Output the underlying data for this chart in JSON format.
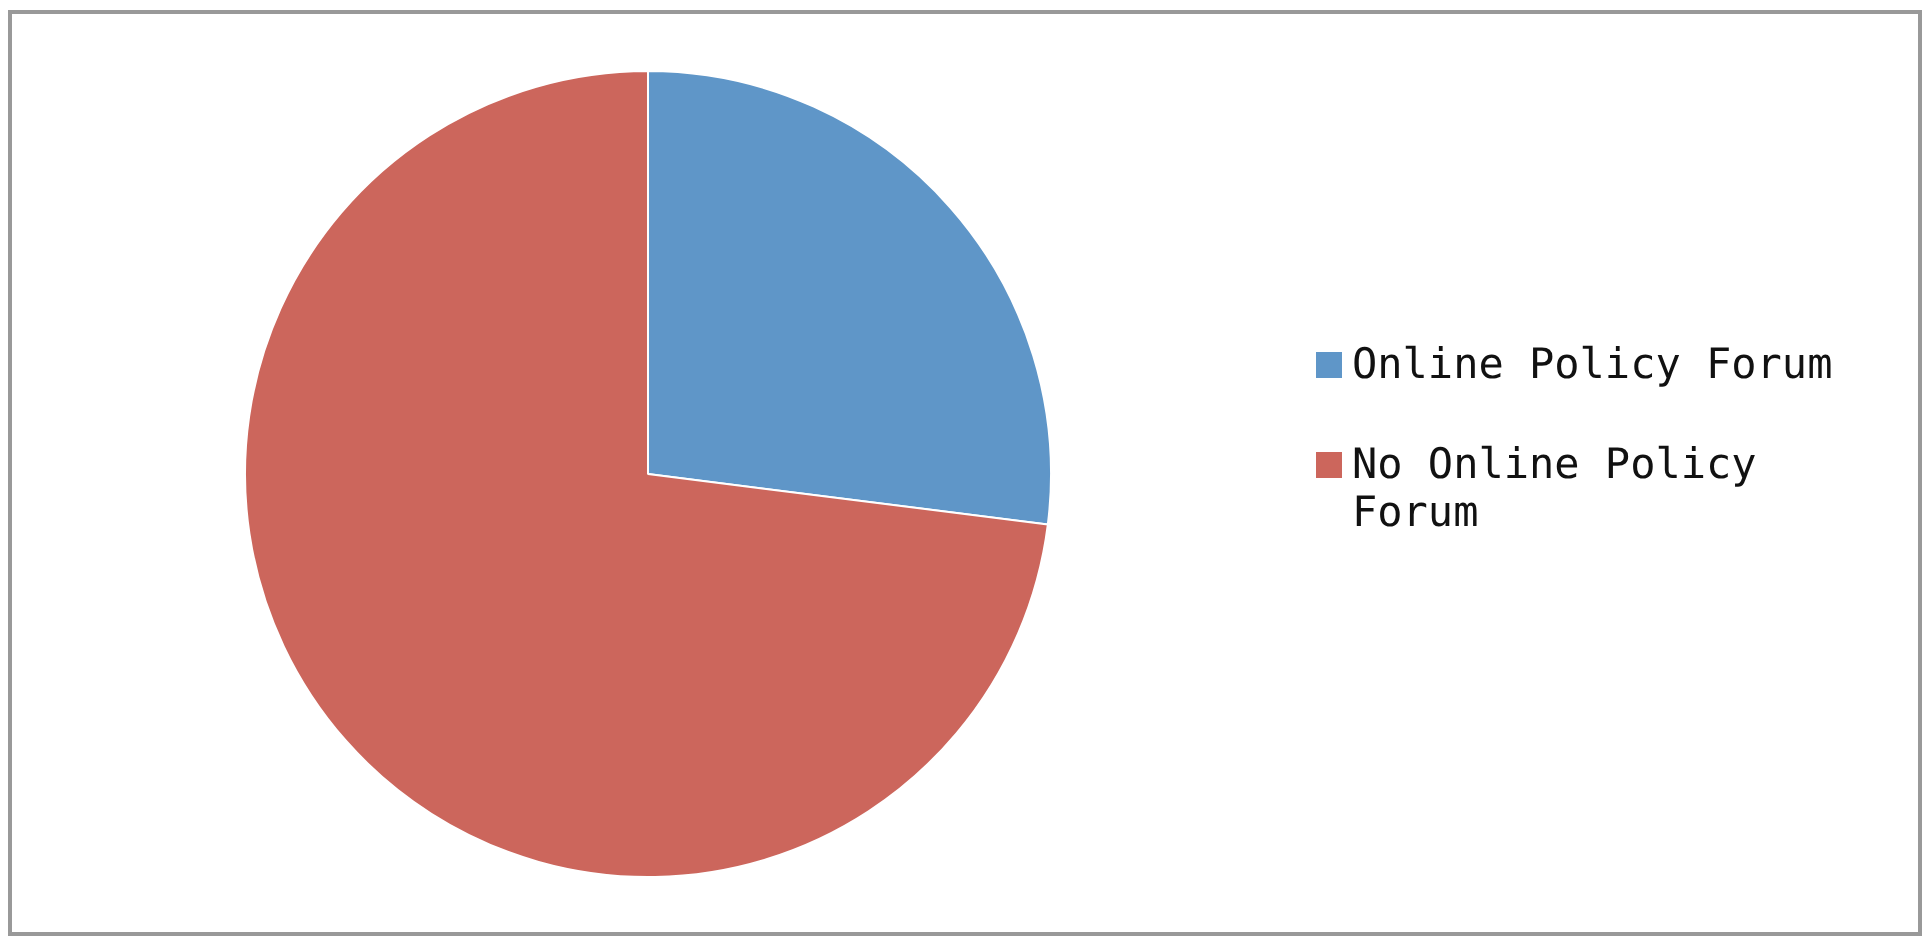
{
  "chart_data": {
    "type": "pie",
    "categories": [
      "Online Policy Forum",
      "No Online Policy Forum"
    ],
    "values": [
      27,
      73
    ],
    "colors": [
      "#5f96c8",
      "#cc665c"
    ],
    "legend": "right"
  }
}
